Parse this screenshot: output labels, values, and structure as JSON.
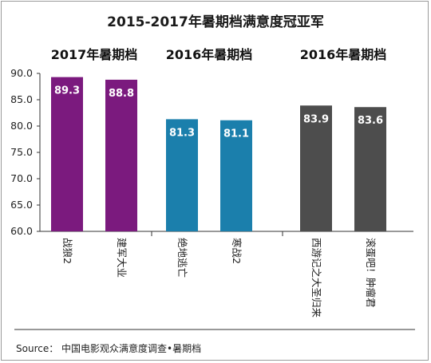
{
  "chart_data": {
    "type": "bar",
    "title": "2015-2017年暑期档满意度冠亚军",
    "ylim": [
      60,
      90
    ],
    "yticks": [
      "60.0",
      "65.0",
      "70.0",
      "75.0",
      "80.0",
      "85.0",
      "90.0"
    ],
    "grid": false,
    "groups": [
      {
        "label": "2017年暑期档",
        "color": "#7b1a7e",
        "bars": [
          {
            "category": "战狼2",
            "value": 89.3
          },
          {
            "category": "建军大业",
            "value": 88.8
          }
        ]
      },
      {
        "label": "2016年暑期档",
        "color": "#1b7fac",
        "bars": [
          {
            "category": "绝地逃亡",
            "value": 81.3
          },
          {
            "category": "寒战2",
            "value": 81.1
          }
        ]
      },
      {
        "label": "2016年暑期档",
        "color": "#4d4d4d",
        "bars": [
          {
            "category": "西游记之大圣归来",
            "value": 83.9
          },
          {
            "category": "滚蛋吧！肿瘤君",
            "value": 83.6
          }
        ]
      }
    ]
  },
  "source": "Source： 中国电影观众满意度调查•暑期档"
}
